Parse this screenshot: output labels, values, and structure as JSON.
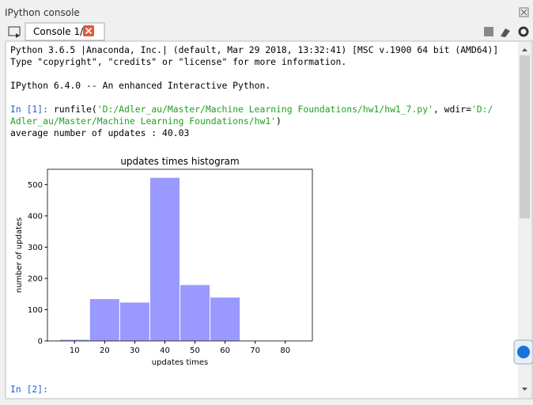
{
  "window": {
    "title": "IPython console"
  },
  "tab": {
    "label": "Console 1/A"
  },
  "console": {
    "lines": [
      [
        {
          "text": "Python 3.6.5 |Anaconda, Inc.| (default, Mar 29 2018, 13:32:41) [MSC v.1900 64 bit (AMD64)]",
          "color": "#000000"
        }
      ],
      [
        {
          "text": "Type \"copyright\", \"credits\" or \"license\" for more information.",
          "color": "#000000"
        }
      ],
      [],
      [
        {
          "text": "IPython 6.4.0 -- An enhanced Interactive Python.",
          "color": "#000000"
        }
      ],
      [],
      [
        {
          "text": "In [1]:",
          "color": "#1f5fd6"
        },
        {
          "text": " runfile(",
          "color": "#000000"
        },
        {
          "text": "'D:/Adler_au/Master/Machine Learning Foundations/hw1/hw1_7.py'",
          "color": "#22a022"
        },
        {
          "text": ", wdir=",
          "color": "#000000"
        },
        {
          "text": "'D:/",
          "color": "#22a022"
        }
      ],
      [
        {
          "text": "Adler_au/Master/Machine Learning Foundations/hw1'",
          "color": "#22a022"
        },
        {
          "text": ")",
          "color": "#000000"
        }
      ],
      [
        {
          "text": "average number of updates : 40.03",
          "color": "#000000"
        }
      ]
    ],
    "prompt": [
      {
        "text": "In [2]:",
        "color": "#1f5fd6"
      }
    ]
  },
  "chart_data": {
    "type": "histogram",
    "title": "updates times histogram",
    "x_label": "updates times",
    "y_label": "number of updates",
    "bins": [
      5,
      15,
      25,
      35,
      45,
      55,
      65,
      75,
      85
    ],
    "values": [
      5,
      135,
      124,
      523,
      180,
      140,
      0,
      0
    ],
    "color": "#9999ff",
    "xlim": [
      1,
      89
    ],
    "ylim": [
      0,
      549
    ],
    "xticks": [
      10,
      20,
      30,
      40,
      50,
      60,
      70,
      80
    ],
    "yticks": [
      0,
      100,
      200,
      300,
      400,
      500
    ]
  }
}
